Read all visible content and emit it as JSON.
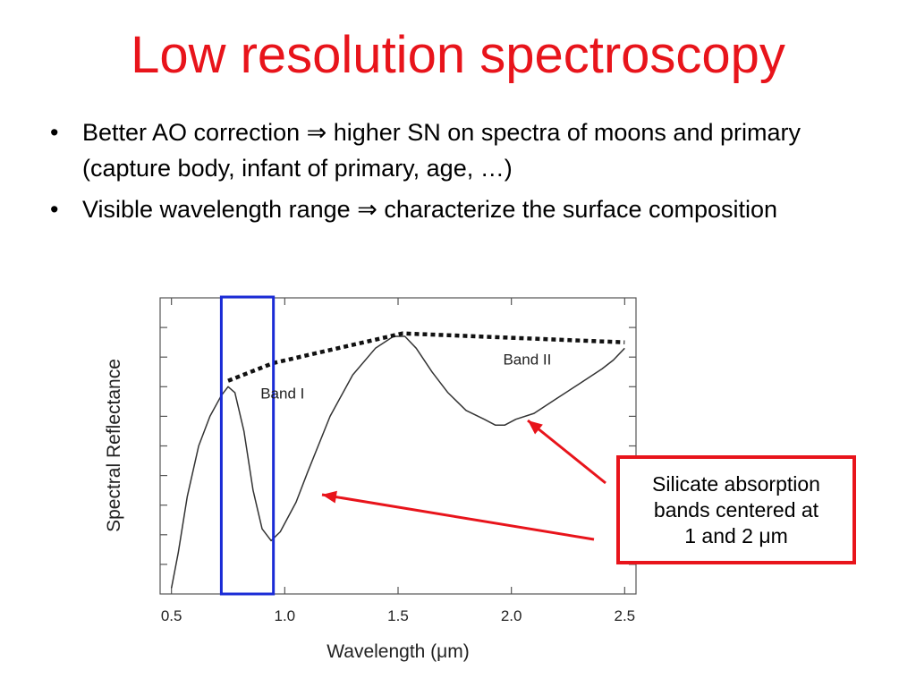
{
  "slide": {
    "title": "Low resolution spectroscopy",
    "bullet_marker": "•",
    "bullets": [
      "Better AO correction ⇒ higher SN on spectra of moons and primary (capture body, infant of primary, age, …)",
      "Visible wavelength range ⇒ characterize the surface composition"
    ],
    "callout": "Silicate absorption\nbands centered at\n1 and 2 μm"
  },
  "colors": {
    "title": "#e8141b",
    "highlight_box": "#1a2bd6",
    "callout_border": "#e8141b",
    "arrow": "#e8141b"
  },
  "chart_data": {
    "type": "line",
    "xlabel": "Wavelength (μm)",
    "ylabel": "Spectral Reflectance",
    "xlim": [
      0.45,
      2.55
    ],
    "ylim": [
      0,
      1
    ],
    "xticks": [
      0.5,
      1.0,
      1.5,
      2.0,
      2.5
    ],
    "xtick_labels": [
      "0.5",
      "1.0",
      "1.5",
      "2.0",
      "2.5"
    ],
    "yticks": [
      0.1,
      0.2,
      0.3,
      0.4,
      0.5,
      0.6,
      0.7,
      0.8,
      0.9
    ],
    "ytick_labels_shown": false,
    "grid": false,
    "series": [
      {
        "style": "solid",
        "x": [
          0.5,
          0.53,
          0.57,
          0.62,
          0.67,
          0.72,
          0.75,
          0.78,
          0.82,
          0.86,
          0.9,
          0.94,
          0.98,
          1.05,
          1.1,
          1.2,
          1.3,
          1.4,
          1.48,
          1.53,
          1.58,
          1.65,
          1.72,
          1.8,
          1.88,
          1.93,
          1.97,
          2.02,
          2.1,
          2.2,
          2.3,
          2.4,
          2.45,
          2.5
        ],
        "y": [
          0.02,
          0.14,
          0.33,
          0.5,
          0.6,
          0.67,
          0.7,
          0.68,
          0.55,
          0.35,
          0.22,
          0.18,
          0.21,
          0.31,
          0.41,
          0.6,
          0.74,
          0.83,
          0.87,
          0.87,
          0.83,
          0.75,
          0.68,
          0.62,
          0.59,
          0.57,
          0.57,
          0.59,
          0.61,
          0.66,
          0.71,
          0.76,
          0.79,
          0.83
        ]
      },
      {
        "style": "dotted",
        "x": [
          0.75,
          0.95,
          1.52,
          2.5
        ],
        "y": [
          0.72,
          0.78,
          0.88,
          0.85
        ]
      }
    ],
    "annotations": [
      {
        "text": "Band I",
        "x": 0.99,
        "y": 0.66
      },
      {
        "text": "Band II",
        "x": 2.07,
        "y": 0.775
      }
    ],
    "highlight_region": {
      "x": [
        0.72,
        0.95
      ]
    }
  }
}
